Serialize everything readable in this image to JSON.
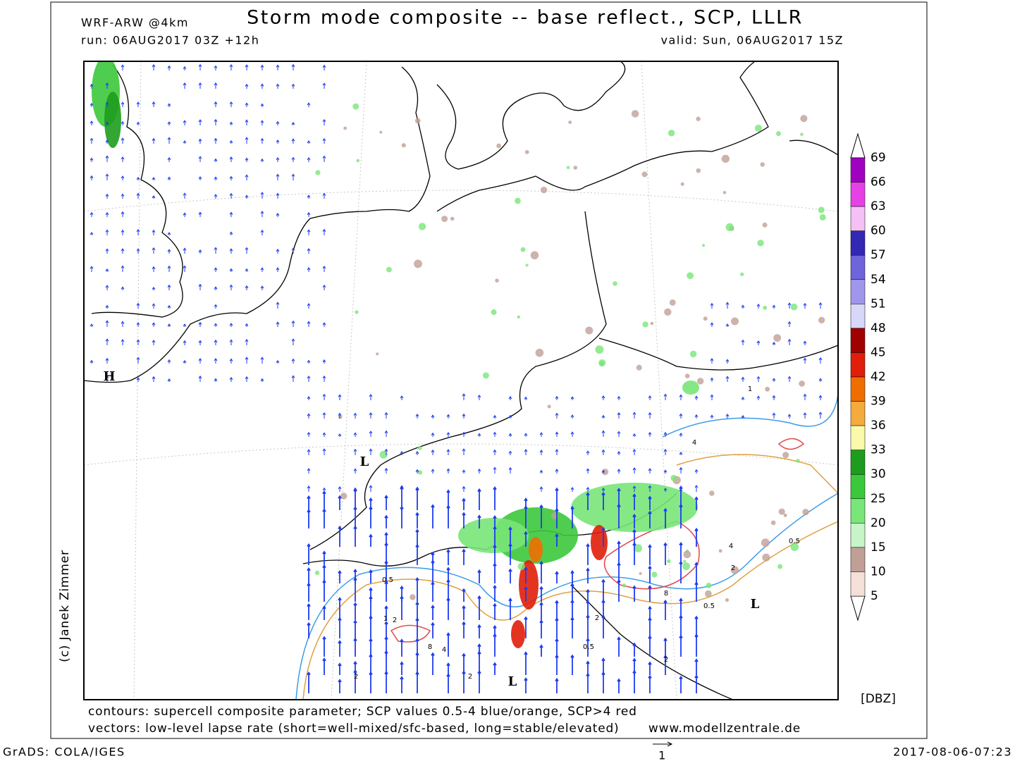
{
  "header": {
    "model": "WRF-ARW @4km",
    "title": "Storm mode composite -- base reflect., SCP, LLLR",
    "run": "run: 06AUG2017 03Z +12h",
    "valid": "valid: Sun, 06AUG2017 15Z"
  },
  "map": {
    "pressure_centers": [
      "H",
      "L",
      "L",
      "L"
    ],
    "contour_labels": [
      "0.5",
      "2",
      "4",
      "8",
      "1",
      "2",
      "4",
      "8",
      "0.5",
      "2",
      "1",
      "2",
      "0.5",
      "2",
      "4",
      "2",
      "0.5"
    ]
  },
  "colorbar": {
    "levels": [
      69,
      66,
      63,
      60,
      57,
      54,
      51,
      48,
      45,
      42,
      39,
      36,
      33,
      30,
      25,
      20,
      15,
      10,
      5
    ],
    "colors": [
      "#a000c0",
      "#e640e6",
      "#f5c0f5",
      "#3228b4",
      "#6e64dc",
      "#a096eb",
      "#d7d7fa",
      "#a00000",
      "#e01e0a",
      "#f06e00",
      "#f5aa3c",
      "#fafaaa",
      "#1e9c1e",
      "#3cc83c",
      "#78e678",
      "#c8f5c8",
      "#c0a096",
      "#f5e0d8"
    ],
    "unit": "[DBZ]"
  },
  "footer": {
    "contours": "contours: supercell composite parameter; SCP values 0.5-4 blue/orange, SCP>4 red",
    "vectors": "vectors: low-level lapse rate (short=well-mixed/sfc-based, long=stable/elevated)",
    "website": "www.modellzentrale.de",
    "credit": "(c) Janek Zimmer",
    "software": "GrADS: COLA/IGES",
    "timestamp": "2017-08-06-07:23",
    "vector_scale": "1"
  }
}
